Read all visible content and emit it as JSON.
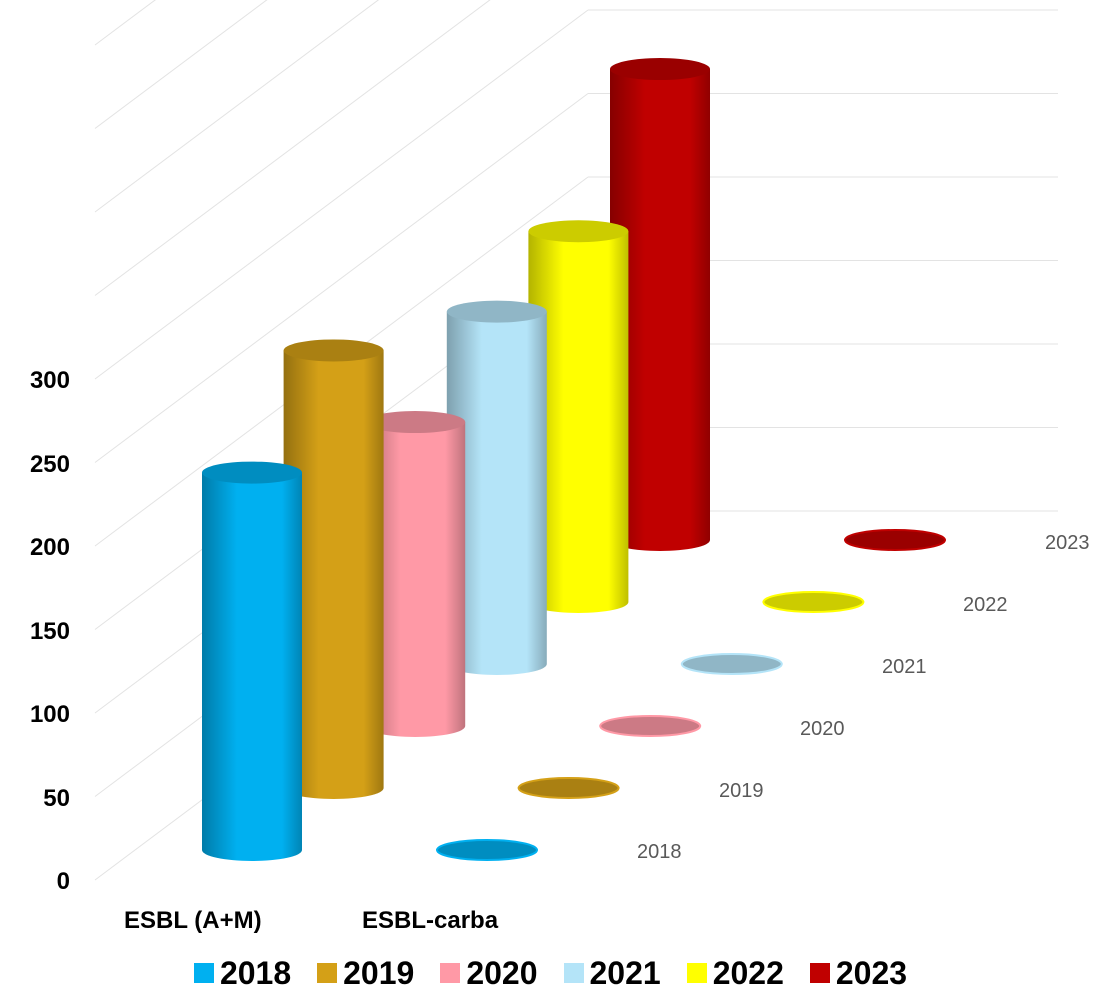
{
  "chart_data": {
    "type": "bar",
    "style": "3d-cylinder",
    "categories": [
      "ESBL (A+M)",
      "ESBL-carba"
    ],
    "series": [
      {
        "name": "2018",
        "color": "#00B0F0",
        "values": [
          226,
          0
        ]
      },
      {
        "name": "2019",
        "color": "#D4A017",
        "values": [
          262,
          0
        ]
      },
      {
        "name": "2020",
        "color": "#FF99A6",
        "values": [
          182,
          0
        ]
      },
      {
        "name": "2021",
        "color": "#B4E4F8",
        "values": [
          211,
          0
        ]
      },
      {
        "name": "2022",
        "color": "#FFFF00",
        "values": [
          222,
          0
        ]
      },
      {
        "name": "2023",
        "color": "#C00000",
        "values": [
          282,
          0
        ]
      }
    ],
    "yticks": [
      "0",
      "50",
      "100",
      "150",
      "200",
      "250",
      "300"
    ],
    "ylim": [
      0,
      300
    ],
    "grid": true,
    "legend": "bottom"
  }
}
